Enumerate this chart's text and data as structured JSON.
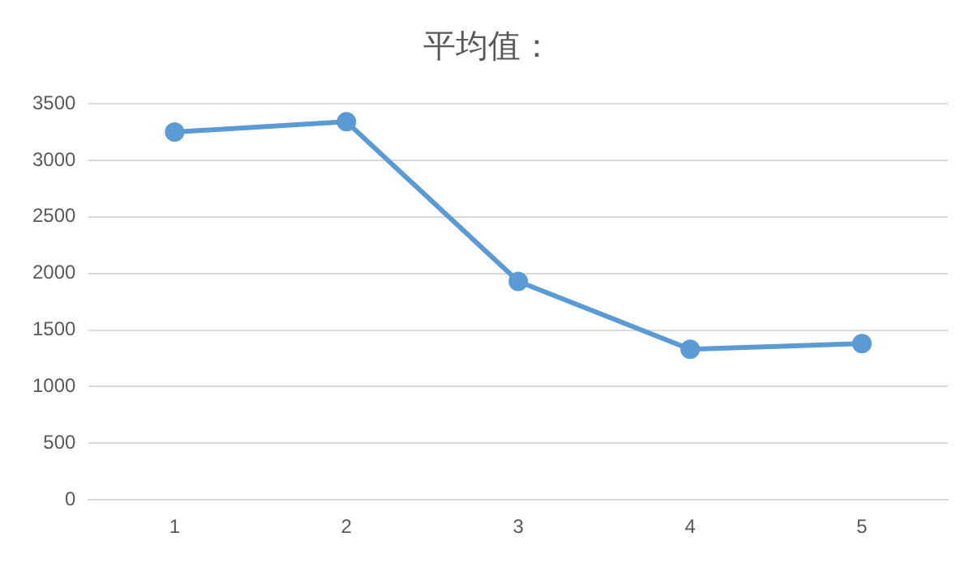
{
  "chart_data": {
    "type": "line",
    "title": "平均值：",
    "categories": [
      "1",
      "2",
      "3",
      "4",
      "5"
    ],
    "series": [
      {
        "color": "#5b9bd5",
        "values": [
          3250,
          3340,
          1930,
          1330,
          1380
        ]
      }
    ],
    "ylim": [
      0,
      3500
    ],
    "yticks": [
      0,
      500,
      1000,
      1500,
      2000,
      2500,
      3000,
      3500
    ],
    "grid": "y",
    "legend": false,
    "marker": "circle",
    "line_style": "solid"
  }
}
